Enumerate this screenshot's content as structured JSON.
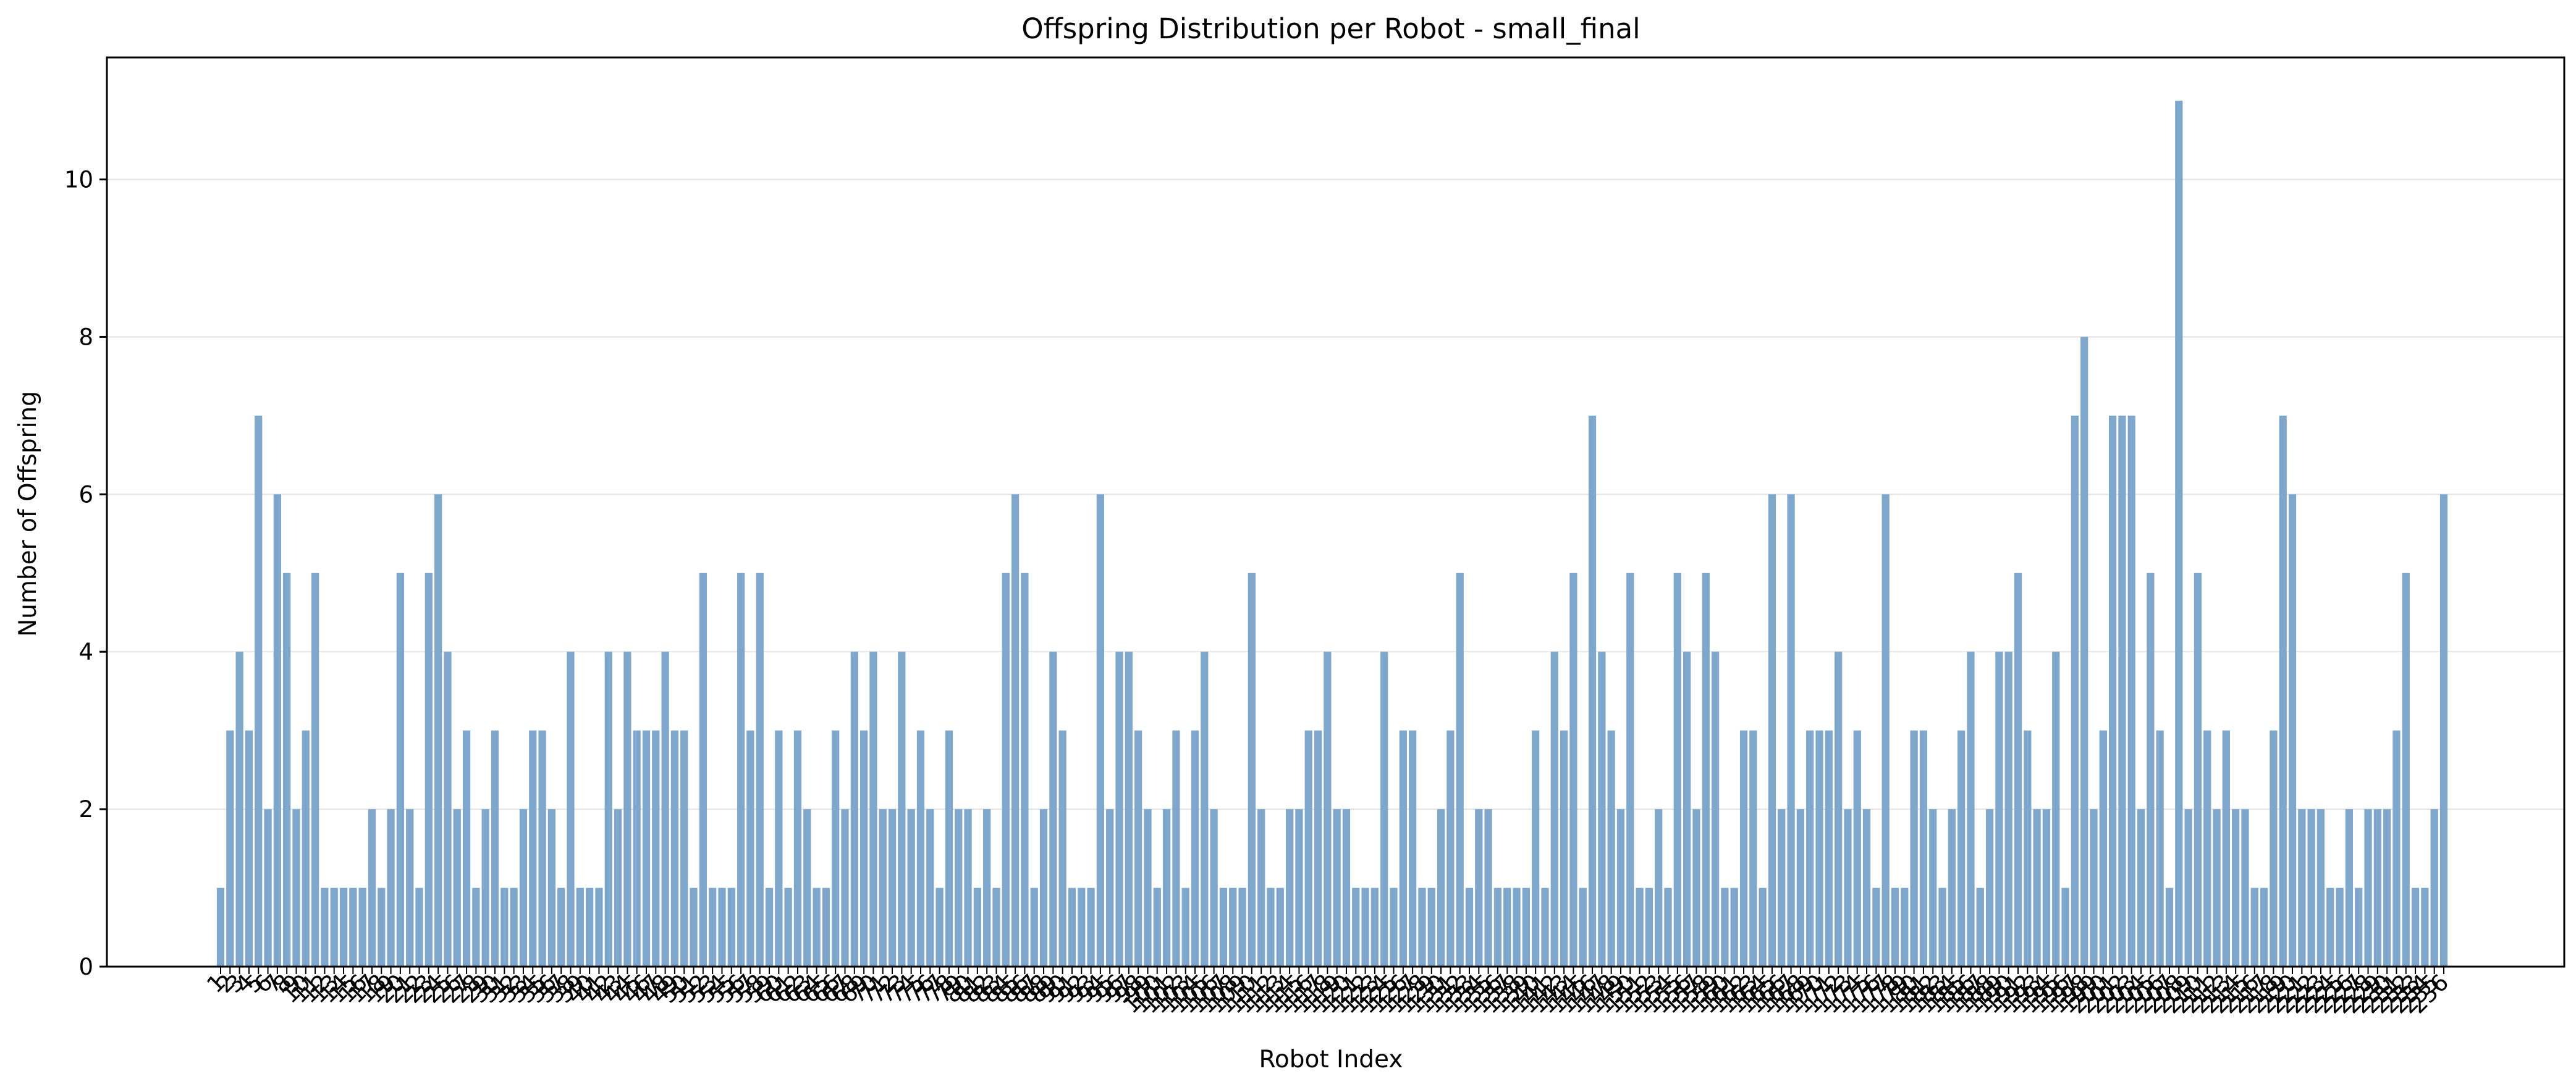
{
  "chart_data": {
    "type": "bar",
    "title": "Offspring Distribution per Robot - small_final",
    "xlabel": "Robot Index",
    "ylabel": "Number of Offspring",
    "ylim": [
      0,
      11.55
    ],
    "yticks": [
      0,
      2,
      4,
      6,
      8,
      10
    ],
    "grid": "horizontal",
    "legend": "none",
    "bar_color": "#7ea7cb",
    "categories": [
      "1",
      "2",
      "3",
      "4",
      "5",
      "6",
      "7",
      "8",
      "9",
      "10",
      "11",
      "12",
      "13",
      "14",
      "15",
      "16",
      "17",
      "18",
      "19",
      "20",
      "21",
      "22",
      "23",
      "24",
      "25",
      "26",
      "27",
      "28",
      "29",
      "30",
      "31",
      "32",
      "33",
      "34",
      "35",
      "36",
      "37",
      "38",
      "39",
      "40",
      "41",
      "42",
      "43",
      "44",
      "45",
      "46",
      "47",
      "48",
      "49",
      "50",
      "51",
      "52",
      "53",
      "54",
      "55",
      "56",
      "57",
      "58",
      "59",
      "60",
      "61",
      "62",
      "63",
      "64",
      "65",
      "66",
      "67",
      "68",
      "69",
      "70",
      "71",
      "72",
      "73",
      "74",
      "75",
      "76",
      "77",
      "78",
      "79",
      "80",
      "81",
      "82",
      "83",
      "84",
      "85",
      "86",
      "87",
      "88",
      "89",
      "90",
      "91",
      "92",
      "93",
      "94",
      "95",
      "96",
      "97",
      "98",
      "99",
      "100",
      "101",
      "102",
      "103",
      "104",
      "105",
      "106",
      "107",
      "108",
      "109",
      "110",
      "111",
      "112",
      "113",
      "114",
      "115",
      "116",
      "117",
      "118",
      "119",
      "120",
      "121",
      "122",
      "123",
      "124",
      "125",
      "126",
      "127",
      "128",
      "129",
      "130",
      "131",
      "132",
      "133",
      "134",
      "135",
      "136",
      "137",
      "138",
      "139",
      "140",
      "141",
      "142",
      "143",
      "144",
      "145",
      "146",
      "147",
      "148",
      "149",
      "150",
      "151",
      "152",
      "153",
      "154",
      "155",
      "156",
      "157",
      "158",
      "159",
      "160",
      "161",
      "162",
      "163",
      "164",
      "165",
      "166",
      "167",
      "168",
      "169",
      "170",
      "171",
      "172",
      "173",
      "174",
      "175",
      "176",
      "177",
      "178",
      "179",
      "180",
      "181",
      "182",
      "183",
      "184",
      "185",
      "186",
      "187",
      "188",
      "189",
      "190",
      "191",
      "192",
      "193",
      "194",
      "195",
      "196",
      "197",
      "198",
      "199",
      "200",
      "201",
      "202",
      "203",
      "204",
      "205",
      "206",
      "207",
      "208",
      "209",
      "210",
      "211",
      "212",
      "213",
      "214",
      "215",
      "216",
      "217",
      "218",
      "219",
      "220",
      "221",
      "222",
      "223",
      "224",
      "225",
      "226",
      "227",
      "228",
      "229",
      "230",
      "231",
      "232",
      "233",
      "234",
      "235",
      "236"
    ],
    "values": [
      1,
      3,
      4,
      3,
      7,
      2,
      6,
      5,
      2,
      3,
      5,
      1,
      1,
      1,
      1,
      1,
      2,
      1,
      2,
      5,
      2,
      1,
      5,
      6,
      4,
      2,
      3,
      1,
      2,
      3,
      1,
      1,
      2,
      3,
      3,
      2,
      1,
      4,
      1,
      1,
      1,
      4,
      2,
      4,
      3,
      3,
      3,
      4,
      3,
      3,
      1,
      5,
      1,
      1,
      1,
      5,
      3,
      5,
      1,
      3,
      1,
      3,
      2,
      1,
      1,
      3,
      2,
      4,
      3,
      4,
      2,
      2,
      4,
      2,
      3,
      2,
      1,
      3,
      2,
      2,
      1,
      2,
      1,
      5,
      6,
      5,
      1,
      2,
      4,
      3,
      1,
      1,
      1,
      6,
      2,
      4,
      4,
      3,
      2,
      1,
      2,
      3,
      1,
      3,
      4,
      2,
      1,
      1,
      1,
      5,
      2,
      1,
      1,
      2,
      2,
      3,
      3,
      4,
      2,
      2,
      1,
      1,
      1,
      4,
      1,
      3,
      3,
      1,
      1,
      2,
      3,
      5,
      1,
      2,
      2,
      1,
      1,
      1,
      1,
      3,
      1,
      4,
      3,
      5,
      1,
      7,
      4,
      3,
      2,
      5,
      1,
      1,
      2,
      1,
      5,
      4,
      2,
      5,
      4,
      1,
      1,
      3,
      3,
      1,
      6,
      2,
      6,
      2,
      3,
      3,
      3,
      4,
      2,
      3,
      2,
      1,
      6,
      1,
      1,
      3,
      3,
      2,
      1,
      2,
      3,
      4,
      1,
      2,
      4,
      4,
      5,
      3,
      2,
      2,
      4,
      1,
      7,
      8,
      2,
      3,
      7,
      7,
      7,
      2,
      5,
      3,
      1,
      11,
      2,
      5,
      3,
      2,
      3,
      2,
      2,
      1,
      1,
      3,
      7,
      6,
      2,
      2,
      2,
      1,
      1,
      2,
      1,
      2,
      2,
      2,
      3,
      5,
      1,
      1,
      2,
      6
    ]
  }
}
